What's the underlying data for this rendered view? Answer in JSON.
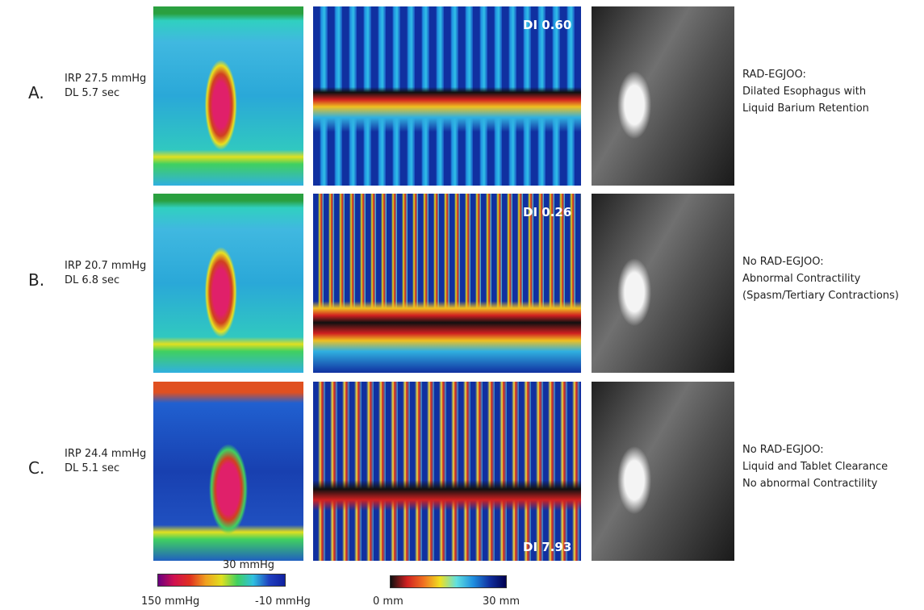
{
  "rows": [
    {
      "label": "A.",
      "irp": "IRP 27.5 mmHg",
      "dl": "DL 5.7 sec",
      "di": "DI 0.60",
      "finding": [
        "RAD-EGJOO:",
        "Dilated Esophagus with",
        "Liquid Barium Retention"
      ]
    },
    {
      "label": "B.",
      "irp": "IRP 20.7 mmHg",
      "dl": "DL 6.8 sec",
      "di": "DI 0.26",
      "finding": [
        "No RAD-EGJOO:",
        "Abnormal Contractility",
        "(Spasm/Tertiary Contractions)"
      ]
    },
    {
      "label": "C.",
      "irp": "IRP 24.4 mmHg",
      "dl": "DL 5.1 sec",
      "di": "DI 7.93",
      "finding": [
        "No RAD-EGJOO:",
        "Liquid and Tablet Clearance",
        "No abnormal Contractility"
      ]
    }
  ],
  "legend": {
    "pressure": {
      "mid": "30 mmHg",
      "min": "150 mmHg",
      "max": "-10 mmHg"
    },
    "diameter": {
      "min": "0 mm",
      "max": "30 mm"
    }
  }
}
